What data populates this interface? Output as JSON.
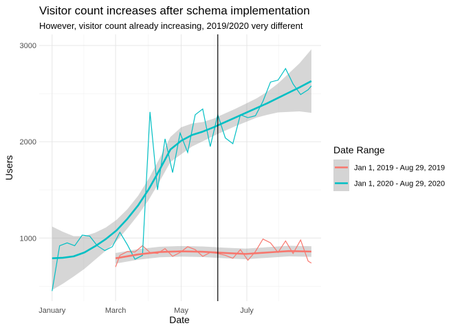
{
  "chart_data": {
    "type": "line",
    "title": "Visitor count increases after schema implementation",
    "subtitle": "However, visitor count already increasing, 2019/2020 very different",
    "xlabel": "Date",
    "ylabel": "Users",
    "x_axis": {
      "ticks": [
        {
          "label": "January",
          "day": 0
        },
        {
          "label": "March",
          "day": 59
        },
        {
          "label": "May",
          "day": 120
        },
        {
          "label": "July",
          "day": 181
        }
      ],
      "range_days": [
        -12,
        250
      ]
    },
    "y_axis": {
      "ticks": [
        1000,
        2000,
        3000
      ],
      "range": [
        345,
        3115
      ]
    },
    "annotation": {
      "type": "vline",
      "day": 154
    },
    "grid": true,
    "legend": {
      "title": "Date Range",
      "position": "right"
    },
    "series": [
      {
        "name": "Jan 1, 2019 - Aug 29, 2019",
        "color": "#F8766D",
        "x_days": [
          59,
          63,
          70,
          77,
          84,
          91,
          98,
          105,
          112,
          119,
          126,
          133,
          140,
          147,
          154,
          161,
          168,
          175,
          182,
          189,
          196,
          203,
          210,
          217,
          224,
          231,
          238,
          241
        ],
        "values": [
          700,
          820,
          860,
          855,
          920,
          850,
          840,
          890,
          810,
          850,
          910,
          880,
          810,
          850,
          840,
          820,
          790,
          880,
          770,
          860,
          990,
          950,
          850,
          970,
          840,
          980,
          760,
          740
        ],
        "smooth": {
          "x_days": [
            59,
            80,
            100,
            120,
            140,
            160,
            180,
            200,
            220,
            241
          ],
          "values": [
            790,
            830,
            855,
            862,
            858,
            845,
            835,
            850,
            865,
            860
          ],
          "band_width": 55
        }
      },
      {
        "name": "Jan 1, 2020 - Aug 29, 2020",
        "color": "#00BFC4",
        "x_days": [
          0,
          7,
          14,
          21,
          28,
          35,
          42,
          49,
          56,
          63,
          70,
          77,
          84,
          91,
          98,
          105,
          112,
          119,
          126,
          133,
          140,
          147,
          154,
          161,
          168,
          175,
          182,
          189,
          196,
          203,
          210,
          217,
          224,
          231,
          238,
          241
        ],
        "values": [
          450,
          920,
          950,
          920,
          1030,
          1020,
          920,
          870,
          910,
          1060,
          930,
          780,
          820,
          2310,
          1500,
          2030,
          1680,
          2090,
          1890,
          2280,
          2340,
          1950,
          2280,
          2040,
          1980,
          2280,
          2250,
          2270,
          2420,
          2620,
          2640,
          2760,
          2600,
          2490,
          2540,
          2580
        ],
        "smooth": {
          "x_days": [
            0,
            10,
            20,
            30,
            40,
            50,
            60,
            70,
            80,
            90,
            100,
            110,
            120,
            130,
            140,
            150,
            160,
            170,
            180,
            190,
            200,
            210,
            220,
            230,
            241
          ],
          "values": [
            790,
            795,
            810,
            850,
            915,
            990,
            1080,
            1200,
            1340,
            1510,
            1710,
            1920,
            2010,
            2070,
            2105,
            2150,
            2200,
            2250,
            2300,
            2350,
            2400,
            2455,
            2510,
            2565,
            2630
          ],
          "band_width": [
            330,
            270,
            210,
            170,
            140,
            120,
            110,
            100,
            100,
            110,
            120,
            130,
            140,
            120,
            100,
            90,
            90,
            90,
            95,
            100,
            120,
            150,
            200,
            250,
            330
          ]
        }
      }
    ]
  }
}
